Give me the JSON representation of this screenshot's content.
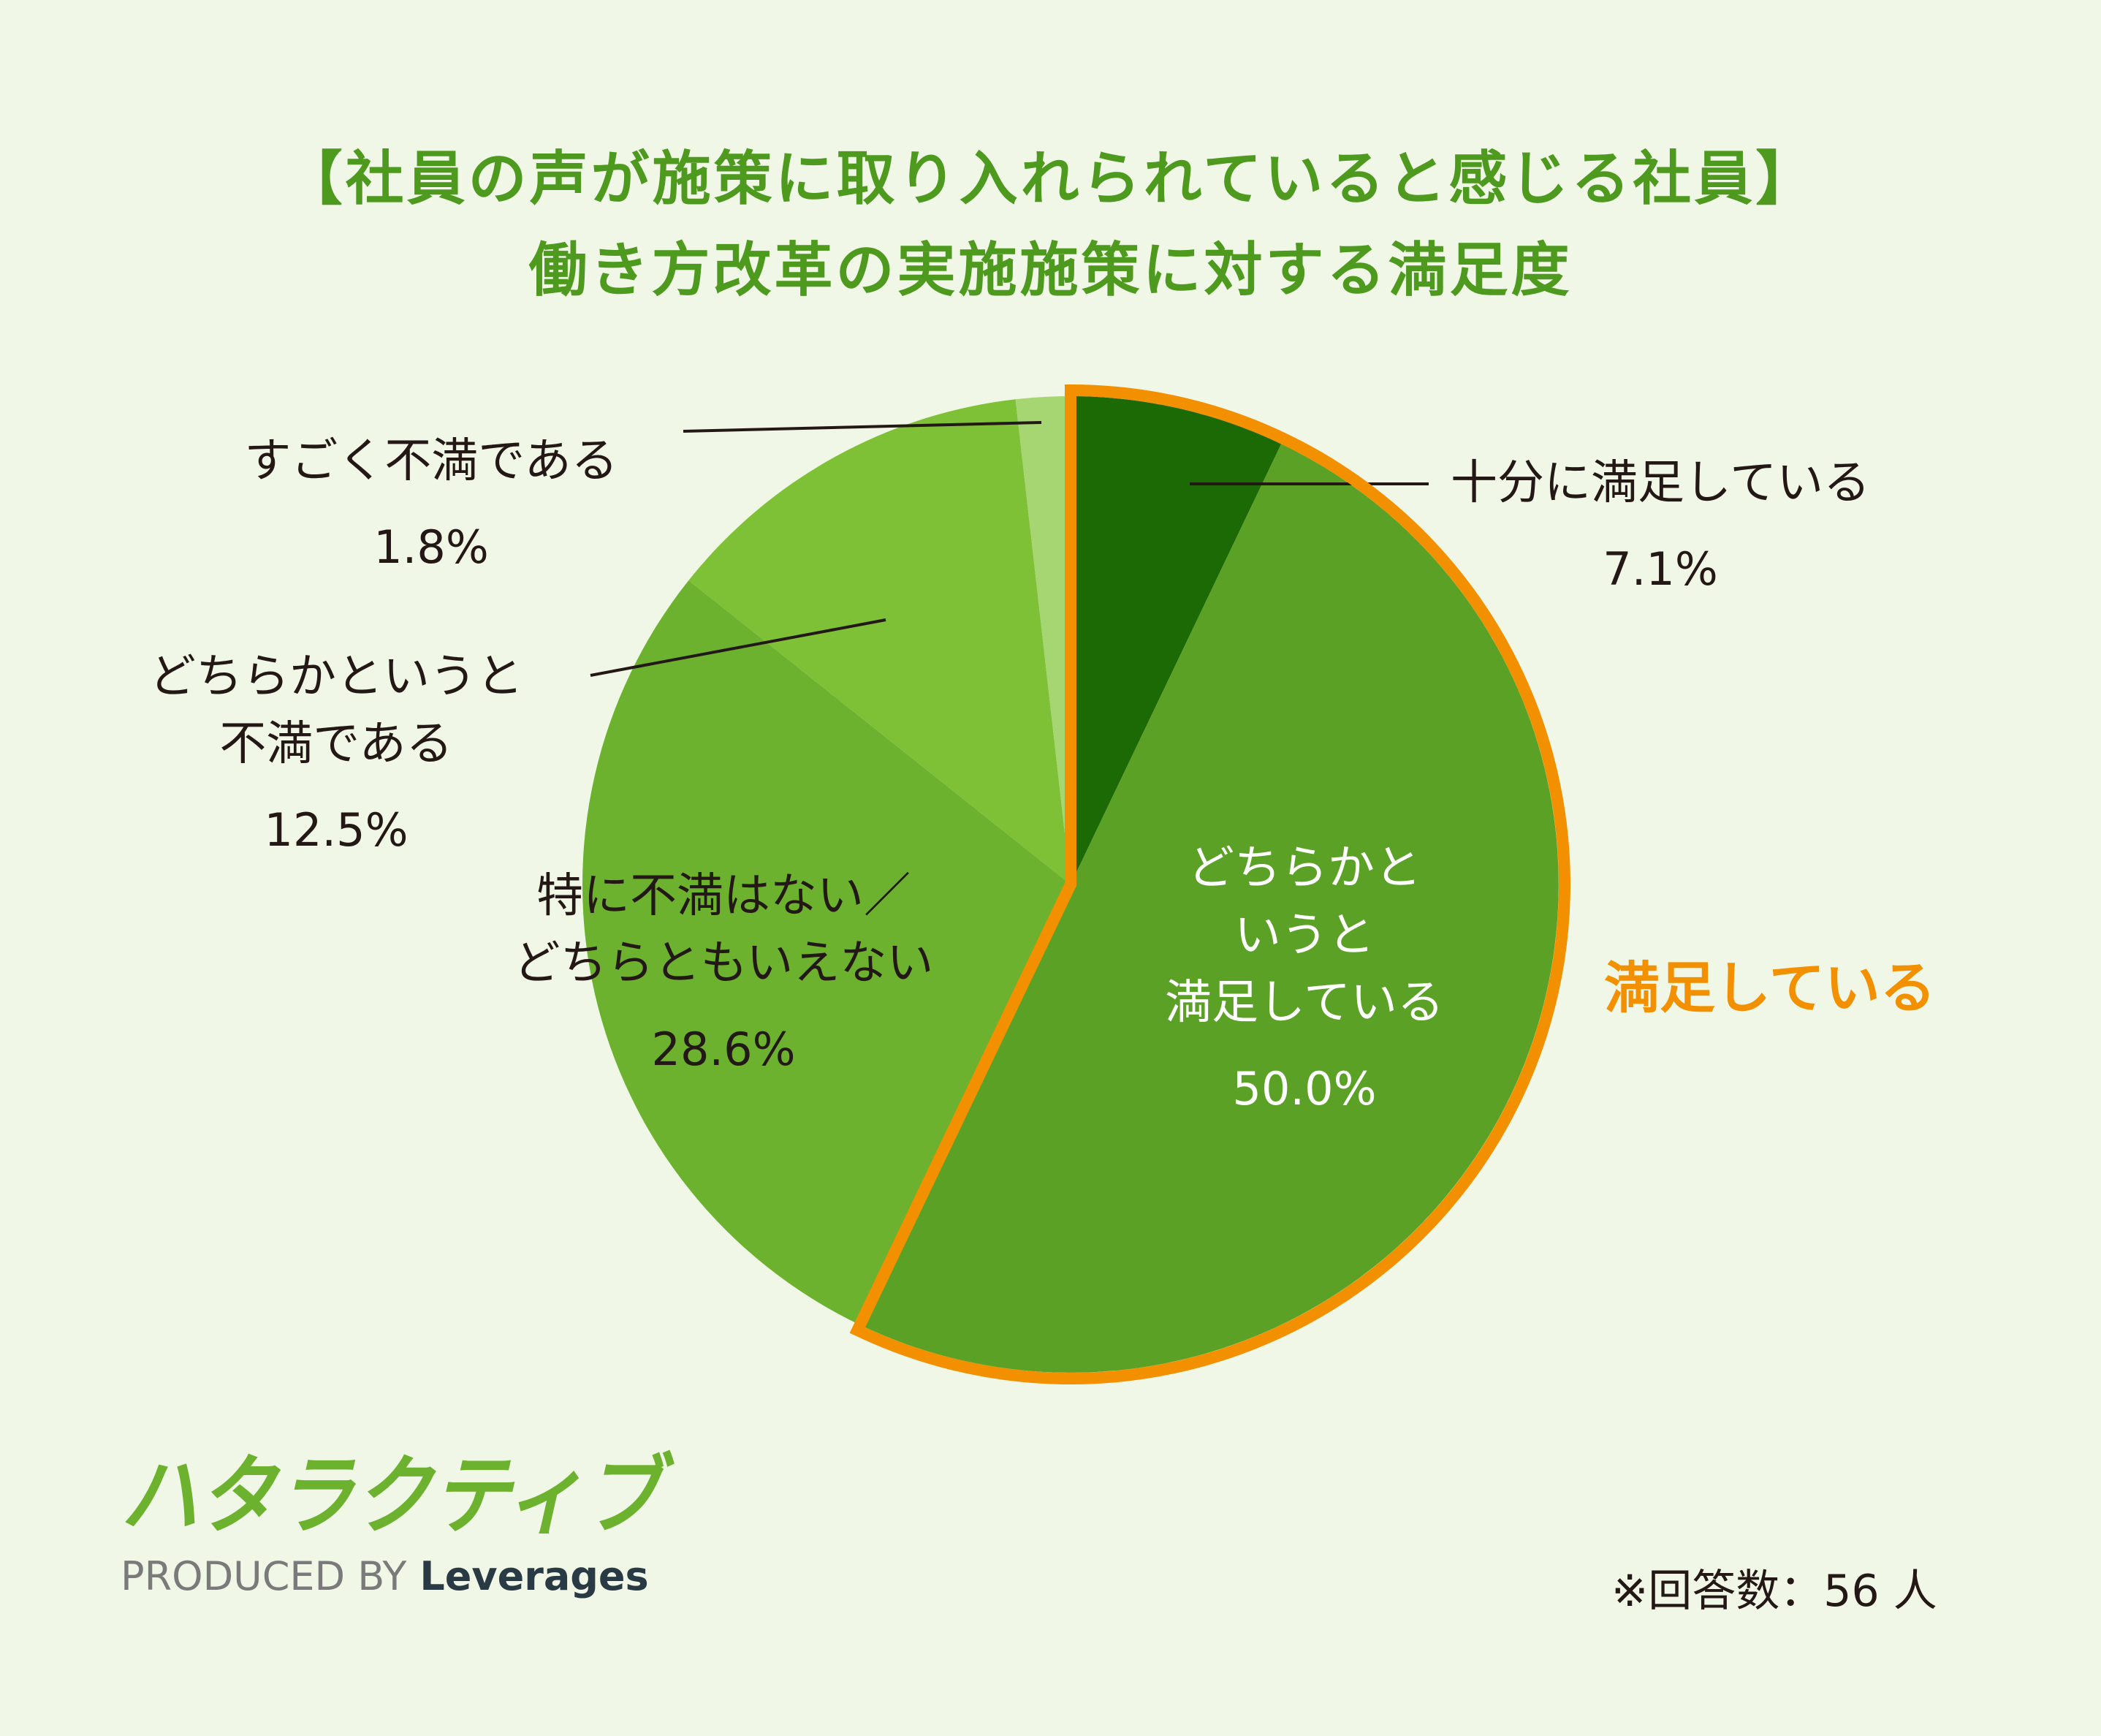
{
  "title": {
    "line1": "【社員の声が施策に取り入れられていると感じる社員】",
    "line2": "働き方改革の実施施策に対する満足度"
  },
  "chart_data": {
    "type": "pie",
    "title": "【社員の声が施策に取り入れられていると感じる社員】働き方改革の実施施策に対する満足度",
    "start": "12 o'clock",
    "direction": "clockwise",
    "slices": [
      {
        "label": "十分に満足している",
        "value": 7.1,
        "pct_text": "7.1%",
        "color": "#1b6a05"
      },
      {
        "label": "どちらかというと満足している",
        "value": 50.0,
        "pct_text": "50.0%",
        "color": "#5aa126"
      },
      {
        "label": "特に不満はない／どちらともいえない",
        "value": 28.6,
        "pct_text": "28.6%",
        "color": "#6cb22e"
      },
      {
        "label": "どちらかというと不満である",
        "value": 12.5,
        "pct_text": "12.5%",
        "color": "#7fc136"
      },
      {
        "label": "すごく不満である",
        "value": 1.8,
        "pct_text": "1.8%",
        "color": "#a6d672"
      }
    ],
    "highlight": {
      "label": "満足している",
      "slices": [
        0,
        1
      ],
      "color": "#f39000"
    }
  },
  "labels": {
    "s0_l1": "十分に満足している",
    "s0_pct": "7.1%",
    "s1_l1": "どちらかと",
    "s1_l2": "いうと",
    "s1_l3": "満足している",
    "s1_pct": "50.0%",
    "s2_l1": "特に不満はない／",
    "s2_l2": "どちらともいえない",
    "s2_pct": "28.6%",
    "s3_l1": "どちらかというと",
    "s3_l2": "不満である",
    "s3_pct": "12.5%",
    "s4_l1": "すごく不満である",
    "s4_pct": "1.8%",
    "group": "満足している"
  },
  "logo": {
    "text": "ハタラクティブ",
    "color": "#6cb22e"
  },
  "produced": {
    "prefix": "PRODUCED BY",
    "brand": "Leverages"
  },
  "footnote": "※回答数：56 人"
}
